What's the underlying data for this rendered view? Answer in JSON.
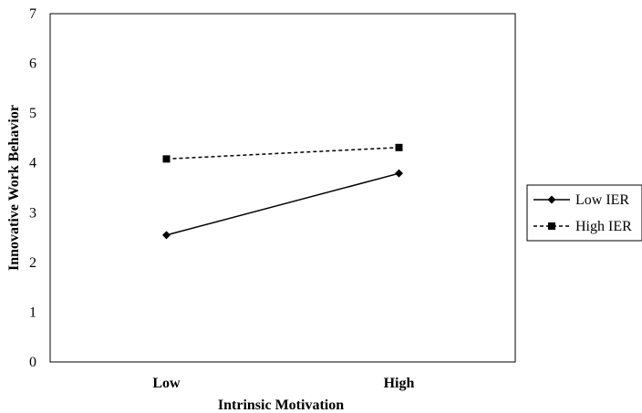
{
  "chart_data": {
    "type": "line",
    "title": "",
    "xlabel": "Intrinsic Motivation",
    "ylabel": "Innovative Work Behavior",
    "categories": [
      "Low",
      "High"
    ],
    "ylim": [
      0,
      7
    ],
    "yticks": [
      "0",
      "1",
      "2",
      "3",
      "4",
      "5",
      "6",
      "7"
    ],
    "grid": false,
    "legend_position": "right",
    "series": [
      {
        "name": "Low IER",
        "values": [
          2.55,
          3.79
        ],
        "marker": "diamond",
        "line_style": "solid",
        "color": "#000000"
      },
      {
        "name": "High IER",
        "values": [
          4.08,
          4.31
        ],
        "marker": "square",
        "line_style": "dashed",
        "color": "#000000"
      }
    ]
  }
}
